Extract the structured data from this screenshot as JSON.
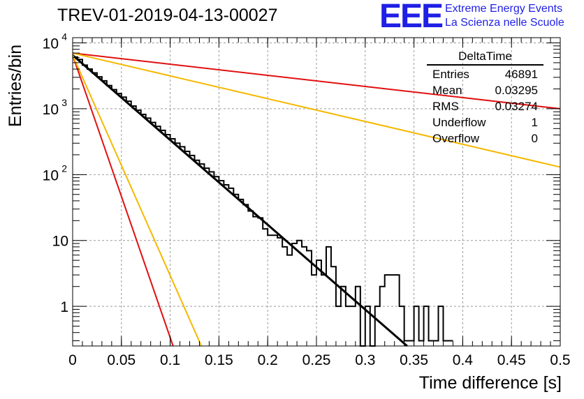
{
  "title": "TREV-01-2019-04-13-00027",
  "logo": {
    "mark": "EEE",
    "line1": "Extreme Energy Events",
    "line2": "La Scienza nelle Scuole"
  },
  "stats_box": {
    "title": "DeltaTime",
    "rows": [
      {
        "label": "Entries",
        "value": "46891"
      },
      {
        "label": "Mean",
        "value": "0.03295"
      },
      {
        "label": "RMS",
        "value": "0.03274"
      },
      {
        "label": "Underflow",
        "value": "1"
      },
      {
        "label": "Overflow",
        "value": "0"
      }
    ]
  },
  "colors": {
    "histogram": "#000000",
    "fit": "#000000",
    "red_curve": "#e01010",
    "orange_curve": "#f5b800",
    "grid": "#999999"
  },
  "chart_data": {
    "type": "line",
    "xlabel": "Time difference [s]",
    "ylabel": "Entries/bin",
    "xlim": [
      0,
      0.5
    ],
    "ylim": [
      0.25,
      12000
    ],
    "yscale": "log",
    "grid": true,
    "legend_position": "top-right",
    "x_ticks": [
      "0",
      "0.05",
      "0.1",
      "0.15",
      "0.2",
      "0.25",
      "0.3",
      "0.35",
      "0.4",
      "0.45",
      "0.5"
    ],
    "y_ticks": [
      "1",
      "10",
      "10^2",
      "10^3",
      "10^4"
    ],
    "histogram": {
      "bin_width": 0.005,
      "counts": [
        6100,
        5600,
        4600,
        4000,
        3500,
        3050,
        2650,
        2250,
        1950,
        1700,
        1500,
        1300,
        1100,
        950,
        820,
        720,
        620,
        540,
        470,
        405,
        350,
        300,
        265,
        225,
        195,
        165,
        145,
        125,
        110,
        93,
        81,
        70,
        62,
        50,
        42,
        35,
        28,
        23,
        22,
        15,
        12,
        12,
        11,
        8,
        6,
        9,
        10,
        8,
        7,
        3,
        5,
        3,
        8,
        4,
        1,
        2,
        1,
        1,
        2,
        0,
        1,
        0,
        1,
        2,
        3,
        3,
        3,
        1,
        0.3,
        0.3,
        1,
        0.3,
        1,
        0.3,
        0.3,
        1,
        0.3,
        0.3
      ]
    },
    "series": [
      {
        "x": [
          0,
          0.343
        ],
        "values": [
          6500,
          0.25
        ]
      },
      {
        "x": [
          0,
          0.103
        ],
        "values": [
          6500,
          0.25
        ]
      },
      {
        "x": [
          0,
          0.132
        ],
        "values": [
          6500,
          0.25
        ]
      },
      {
        "x": [
          0,
          0.5
        ],
        "values": [
          7000,
          1000
        ]
      },
      {
        "x": [
          0,
          0.5
        ],
        "values": [
          7000,
          130
        ]
      }
    ]
  }
}
